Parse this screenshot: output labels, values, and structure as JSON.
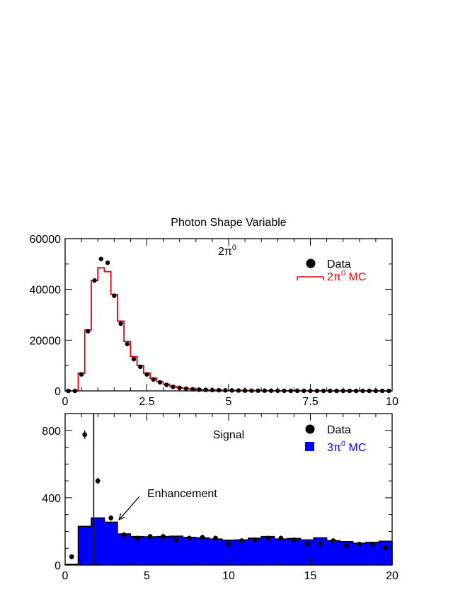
{
  "chart_data": [
    {
      "type": "histogram",
      "title": "Photon Shape Variable",
      "annotation": "2π",
      "annotation_sup": "0",
      "xlim": [
        0,
        10
      ],
      "ylim": [
        0,
        60000
      ],
      "x_ticks": [
        {
          "value": 0,
          "label": "0"
        },
        {
          "value": 2.5,
          "label": "2.5"
        },
        {
          "value": 5,
          "label": "5"
        },
        {
          "value": 7.5,
          "label": "7.5"
        },
        {
          "value": 10,
          "label": "10"
        }
      ],
      "y_ticks": [
        {
          "value": 0,
          "label": "0"
        },
        {
          "value": 20000,
          "label": "20000"
        },
        {
          "value": 40000,
          "label": "40000"
        },
        {
          "value": 60000,
          "label": "60000"
        }
      ],
      "legend": [
        {
          "label": "Data",
          "marker": "circle",
          "color": "#000000"
        },
        {
          "label": "2π",
          "sup": "0",
          "suffix": " MC",
          "marker": "line",
          "color": "#e8000b"
        }
      ],
      "legend_position": "top-right",
      "bin_width": 0.2,
      "series": [
        {
          "name": "Data",
          "kind": "points",
          "color": "#000000",
          "x": [
            0.1,
            0.3,
            0.5,
            0.7,
            0.9,
            1.1,
            1.3,
            1.5,
            1.7,
            1.9,
            2.1,
            2.3,
            2.5,
            2.7,
            2.9,
            3.1,
            3.3,
            3.5,
            3.7,
            3.9,
            4.1,
            4.3,
            4.5,
            4.7,
            4.9,
            5.1,
            5.3,
            5.5,
            5.7,
            5.9,
            6.1,
            6.3,
            6.5,
            6.7,
            6.9,
            7.1,
            7.3,
            7.5,
            7.7,
            7.9,
            8.1,
            8.3,
            8.5,
            8.7,
            8.9,
            9.1,
            9.3,
            9.5,
            9.7,
            9.9
          ],
          "y": [
            0,
            0,
            6500,
            23500,
            43500,
            52000,
            50500,
            37500,
            26500,
            18500,
            12500,
            9500,
            6500,
            4500,
            3400,
            2400,
            1600,
            1200,
            900,
            650,
            500,
            400,
            320,
            270,
            220,
            180,
            150,
            120,
            100,
            90,
            80,
            70,
            60,
            50,
            45,
            40,
            35,
            30,
            25,
            22,
            20,
            18,
            16,
            14,
            12,
            10,
            10,
            8,
            8,
            6
          ]
        },
        {
          "name": "2π0 MC",
          "kind": "step",
          "color": "#e8000b",
          "x_edges": [
            0,
            0.2,
            0.4,
            0.6,
            0.8,
            1.0,
            1.2,
            1.4,
            1.6,
            1.8,
            2.0,
            2.2,
            2.4,
            2.6,
            2.8,
            3.0,
            3.2,
            3.4,
            3.6,
            3.8,
            4.0,
            4.2,
            4.4,
            4.6,
            4.8,
            5.0,
            5.2,
            5.4,
            5.6,
            5.8,
            6.0,
            6.2,
            6.4,
            6.6,
            6.8,
            7.0,
            7.2,
            7.4,
            7.6,
            7.8,
            8.0,
            8.2,
            8.4,
            8.6,
            8.8,
            9.0,
            9.2,
            9.4,
            9.6,
            9.8,
            10.0
          ],
          "y": [
            0,
            0,
            7000,
            24000,
            43500,
            48500,
            47000,
            38000,
            27500,
            19500,
            13500,
            10000,
            7000,
            5000,
            3600,
            2600,
            1800,
            1300,
            950,
            700,
            520,
            420,
            340,
            280,
            230,
            190,
            160,
            130,
            110,
            95,
            85,
            75,
            65,
            55,
            48,
            42,
            37,
            32,
            27,
            24,
            21,
            19,
            17,
            15,
            13,
            11,
            10,
            9,
            8,
            7
          ]
        }
      ]
    },
    {
      "type": "histogram",
      "annotation": "Signal",
      "xlim": [
        0,
        20
      ],
      "ylim": [
        0,
        900
      ],
      "x_ticks": [
        {
          "value": 0,
          "label": "0"
        },
        {
          "value": 5,
          "label": "5"
        },
        {
          "value": 10,
          "label": "10"
        },
        {
          "value": 15,
          "label": "15"
        },
        {
          "value": 20,
          "label": "20"
        }
      ],
      "y_ticks": [
        {
          "value": 0,
          "label": "0"
        },
        {
          "value": 400,
          "label": "400"
        },
        {
          "value": 800,
          "label": "800"
        }
      ],
      "legend": [
        {
          "label": "Data",
          "marker": "circle",
          "color": "#000000"
        },
        {
          "label": "3π",
          "sup": "0",
          "suffix": " MC",
          "marker": "square",
          "color": "#0000ff"
        }
      ],
      "legend_position": "top-right",
      "cut_line_x": 1.75,
      "enhancement_label": "Enhancement",
      "enhancement_target": {
        "x": 3.3,
        "y": 270
      },
      "series": [
        {
          "name": "3π0 MC",
          "kind": "filled_step",
          "color": "#0000ff",
          "x_edges": [
            0,
            0.8,
            1.6,
            2.4,
            3.2,
            4.0,
            4.8,
            5.6,
            6.4,
            7.2,
            8.0,
            8.8,
            9.6,
            10.4,
            11.2,
            12.0,
            12.8,
            13.6,
            14.4,
            15.2,
            16.0,
            16.8,
            17.6,
            18.4,
            19.2,
            20.0
          ],
          "y": [
            5,
            230,
            280,
            255,
            185,
            170,
            168,
            170,
            172,
            165,
            162,
            155,
            148,
            150,
            160,
            170,
            155,
            158,
            150,
            162,
            145,
            140,
            130,
            135,
            142
          ]
        },
        {
          "name": "Data",
          "kind": "points",
          "color": "#000000",
          "x": [
            0.4,
            1.2,
            2.0,
            2.8,
            3.6,
            4.4,
            5.2,
            6.0,
            6.8,
            7.6,
            8.4,
            9.2,
            10.0,
            10.8,
            11.6,
            12.4,
            13.2,
            14.0,
            14.8,
            15.6,
            16.4,
            17.2,
            18.0,
            18.8,
            19.6
          ],
          "y": [
            50,
            775,
            500,
            280,
            180,
            160,
            170,
            170,
            150,
            160,
            165,
            160,
            125,
            145,
            150,
            160,
            160,
            150,
            125,
            130,
            145,
            115,
            125,
            125,
            105
          ],
          "err": [
            15,
            25,
            20,
            15,
            12,
            12,
            12,
            12,
            12,
            12,
            12,
            12,
            11,
            11,
            11,
            11,
            11,
            11,
            10,
            10,
            11,
            10,
            10,
            10,
            10
          ]
        }
      ]
    }
  ]
}
